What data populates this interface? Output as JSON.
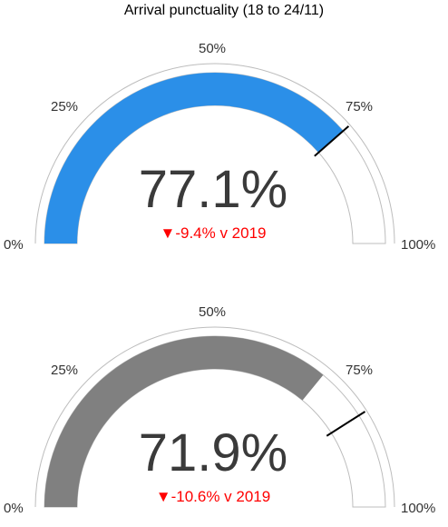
{
  "title": "Arrival punctuality (18 to 24/11)",
  "chart_data": [
    {
      "type": "gauge",
      "value": 77.1,
      "value_label": "77.1%",
      "range": [
        0,
        100
      ],
      "ticks": [
        "0%",
        "25%",
        "50%",
        "75%",
        "100%"
      ],
      "target": 77.1,
      "fill_color": "#2b8fe8",
      "delta_label": "▼-9.4% v 2019",
      "delta_color": "#ff0000"
    },
    {
      "type": "gauge",
      "value": 71.9,
      "value_label": "71.9%",
      "range": [
        0,
        100
      ],
      "ticks": [
        "0%",
        "25%",
        "50%",
        "75%",
        "100%"
      ],
      "target": 82.0,
      "fill_color": "#808080",
      "delta_label": "▼-10.6% v 2019",
      "delta_color": "#ff0000"
    }
  ]
}
